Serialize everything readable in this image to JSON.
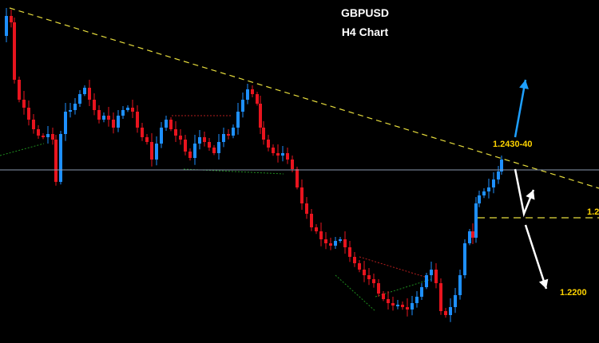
{
  "chart_data": {
    "type": "candlestick",
    "title": "GBPUSD",
    "subtitle": "H4 Chart",
    "colors": {
      "up": "#1e90ff",
      "down": "#e8141e",
      "trendline": "#e6dc3c",
      "horizontal_line": "#8a9ab0",
      "support_line": "#e6dc3c",
      "arrow_up": "#1ea0ff",
      "arrow_down": "#ffffff",
      "annotation_text": "#ffd400",
      "pattern_green": "#1e8c1e",
      "pattern_red": "#b41e1e"
    },
    "annotations": [
      {
        "text": "1.2430-40"
      },
      {
        "text": "1.2"
      },
      {
        "text": "1.2200"
      }
    ],
    "projections": [
      {
        "direction": "up"
      },
      {
        "direction": "down"
      }
    ]
  }
}
